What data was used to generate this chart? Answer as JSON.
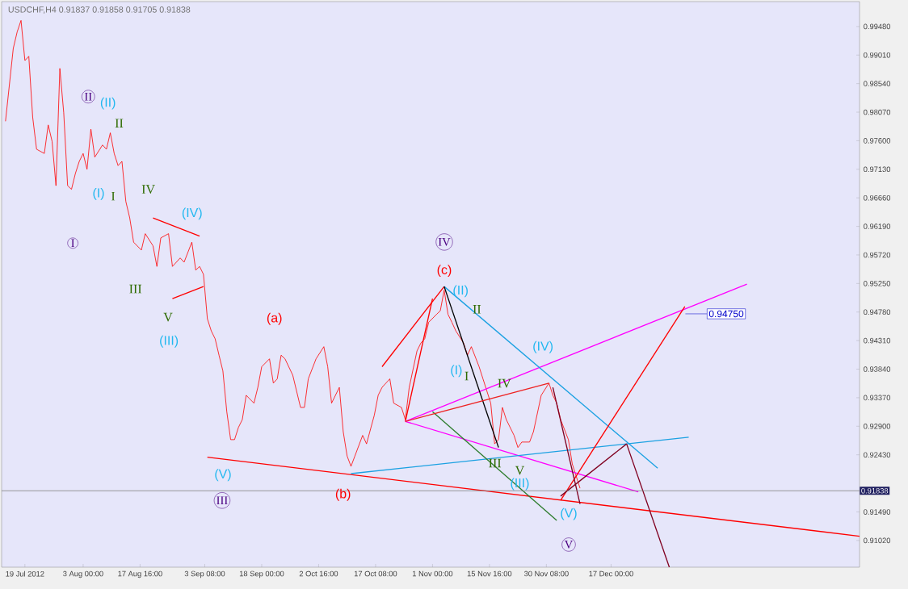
{
  "chart_data": {
    "type": "line",
    "title": "USDCHF,H4  0.91837 0.91858 0.91705 0.91838",
    "xlim": [
      "2012-07-13",
      "2013-02-19"
    ],
    "ylim": [
      0.9058,
      0.9989
    ],
    "xticks": [
      {
        "value": "2012-07-19",
        "label": "19 Jul 2012"
      },
      {
        "value": "2012-08-03T00:00",
        "label": "3 Aug 00:00"
      },
      {
        "value": "2012-08-17T16:00",
        "label": "17 Aug 16:00"
      },
      {
        "value": "2012-09-03T08:00",
        "label": "3 Sep 08:00"
      },
      {
        "value": "2012-09-18T00:00",
        "label": "18 Sep 00:00"
      },
      {
        "value": "2012-10-02T16:00",
        "label": "2 Oct 16:00"
      },
      {
        "value": "2012-10-17T08:00",
        "label": "17 Oct 08:00"
      },
      {
        "value": "2012-11-01T00:00",
        "label": "1 Nov 00:00"
      },
      {
        "value": "2012-11-15T16:00",
        "label": "15 Nov 16:00"
      },
      {
        "value": "2012-11-30T08:00",
        "label": "30 Nov 08:00"
      },
      {
        "value": "2012-12-17T00:00",
        "label": "17 Dec 00:00"
      }
    ],
    "yticks": [
      {
        "value": 0.9102,
        "label": "0.91020"
      },
      {
        "value": 0.9149,
        "label": "0.91490"
      },
      {
        "value": 0.9243,
        "label": "0.92430"
      },
      {
        "value": 0.929,
        "label": "0.92900"
      },
      {
        "value": 0.9337,
        "label": "0.93370"
      },
      {
        "value": 0.9384,
        "label": "0.93840"
      },
      {
        "value": 0.9431,
        "label": "0.94310"
      },
      {
        "value": 0.9478,
        "label": "0.94780"
      },
      {
        "value": 0.9525,
        "label": "0.95250"
      },
      {
        "value": 0.9572,
        "label": "0.95720"
      },
      {
        "value": 0.9619,
        "label": "0.96190"
      },
      {
        "value": 0.9666,
        "label": "0.96660"
      },
      {
        "value": 0.9713,
        "label": "0.97130"
      },
      {
        "value": 0.976,
        "label": "0.97600"
      },
      {
        "value": 0.9807,
        "label": "0.98070"
      },
      {
        "value": 0.9854,
        "label": "0.98540"
      },
      {
        "value": 0.9901,
        "label": "0.99010"
      },
      {
        "value": 0.9948,
        "label": "0.99480"
      }
    ],
    "series": [
      {
        "color": "#ff0000",
        "x": [
          "2012-07-14",
          "2012-07-16",
          "2012-07-17",
          "2012-07-18",
          "2012-07-19",
          "2012-07-20",
          "2012-07-21",
          "2012-07-22",
          "2012-07-24",
          "2012-07-25",
          "2012-07-26",
          "2012-07-27",
          "2012-07-28",
          "2012-07-29",
          "2012-07-30",
          "2012-07-31",
          "2012-08-01",
          "2012-08-02",
          "2012-08-03",
          "2012-08-04",
          "2012-08-05",
          "2012-08-06",
          "2012-08-08",
          "2012-08-09",
          "2012-08-10",
          "2012-08-11",
          "2012-08-12",
          "2012-08-13",
          "2012-08-14",
          "2012-08-15",
          "2012-08-16",
          "2012-08-18",
          "2012-08-19",
          "2012-08-21",
          "2012-08-22",
          "2012-08-23",
          "2012-08-25",
          "2012-08-26",
          "2012-08-28",
          "2012-08-29",
          "2012-08-31",
          "2012-09-01",
          "2012-09-02",
          "2012-09-03",
          "2012-09-04",
          "2012-09-05",
          "2012-09-06",
          "2012-09-07",
          "2012-09-08",
          "2012-09-09",
          "2012-09-10",
          "2012-09-11",
          "2012-09-12",
          "2012-09-13",
          "2012-09-14",
          "2012-09-16",
          "2012-09-17",
          "2012-09-18",
          "2012-09-20",
          "2012-09-21",
          "2012-09-22",
          "2012-09-23",
          "2012-09-24",
          "2012-09-26",
          "2012-09-28",
          "2012-09-29",
          "2012-09-30",
          "2012-10-02",
          "2012-10-04",
          "2012-10-05",
          "2012-10-06",
          "2012-10-08",
          "2012-10-09",
          "2012-10-10",
          "2012-10-11",
          "2012-10-12",
          "2012-10-14",
          "2012-10-15",
          "2012-10-17",
          "2012-10-18",
          "2012-10-19",
          "2012-10-21",
          "2012-10-22",
          "2012-10-24",
          "2012-10-25",
          "2012-10-26",
          "2012-10-28",
          "2012-10-29",
          "2012-10-30",
          "2012-10-31",
          "2012-11-02",
          "2012-11-03",
          "2012-11-04",
          "2012-11-05",
          "2012-11-06",
          "2012-11-07",
          "2012-11-09",
          "2012-11-10",
          "2012-11-11",
          "2012-11-13",
          "2012-11-14",
          "2012-11-16",
          "2012-11-17",
          "2012-11-18",
          "2012-11-19",
          "2012-11-20",
          "2012-11-22",
          "2012-11-23",
          "2012-11-24",
          "2012-11-26",
          "2012-11-27",
          "2012-11-29",
          "2012-12-01",
          "2012-12-02",
          "2012-12-03",
          "2012-12-04",
          "2012-12-06",
          "2012-12-07",
          "2012-12-08",
          "2012-12-09"
        ],
        "values": [
          0.9792,
          0.9912,
          0.9939,
          0.9958,
          0.9892,
          0.9899,
          0.9799,
          0.9746,
          0.9739,
          0.9786,
          0.9759,
          0.9686,
          0.9879,
          0.9806,
          0.9686,
          0.968,
          0.9706,
          0.9726,
          0.9739,
          0.9713,
          0.9779,
          0.9733,
          0.9753,
          0.9746,
          0.9773,
          0.9739,
          0.9719,
          0.9726,
          0.966,
          0.9633,
          0.9593,
          0.958,
          0.9607,
          0.9587,
          0.9553,
          0.96,
          0.9607,
          0.9553,
          0.9567,
          0.956,
          0.9593,
          0.9547,
          0.9553,
          0.954,
          0.9467,
          0.9447,
          0.9434,
          0.9407,
          0.9381,
          0.9314,
          0.9268,
          0.9268,
          0.9288,
          0.9301,
          0.9341,
          0.9328,
          0.9354,
          0.9388,
          0.9401,
          0.9361,
          0.9368,
          0.9407,
          0.9401,
          0.9374,
          0.9321,
          0.9321,
          0.9368,
          0.9401,
          0.9421,
          0.9388,
          0.9328,
          0.9354,
          0.9281,
          0.9241,
          0.9224,
          0.9241,
          0.9275,
          0.9261,
          0.9308,
          0.9341,
          0.9354,
          0.9368,
          0.9328,
          0.9321,
          0.9301,
          0.9354,
          0.9414,
          0.9427,
          0.9434,
          0.9461,
          0.9474,
          0.948,
          0.9514,
          0.9474,
          0.9461,
          0.9447,
          0.9427,
          0.9407,
          0.9421,
          0.9388,
          0.9368,
          0.9328,
          0.9261,
          0.9268,
          0.9321,
          0.9301,
          0.9275,
          0.9255,
          0.9264,
          0.9264,
          0.9281,
          0.9341,
          0.9361,
          0.9341,
          0.9328,
          0.9301,
          0.9268,
          0.9228,
          0.9208,
          0.9188
        ]
      },
      {
        "color": "#ff0000",
        "x": [
          "2012-09-04",
          "2013-02-19"
        ],
        "values": [
          0.9239,
          0.9109
        ]
      },
      {
        "color": "#ff0000",
        "x": [
          "2012-08-21",
          "2012-09-02"
        ],
        "values": [
          0.9633,
          0.9603
        ]
      },
      {
        "color": "#ff0000",
        "x": [
          "2012-08-26",
          "2012-09-03"
        ],
        "values": [
          0.95,
          0.952
        ]
      },
      {
        "color": "#ff0000",
        "x": [
          "2012-10-19",
          "2012-11-04"
        ],
        "values": [
          0.9388,
          0.952
        ]
      },
      {
        "color": "#ff0000",
        "x": [
          "2012-10-25",
          "2012-11-01"
        ],
        "values": [
          0.9298,
          0.95
        ]
      },
      {
        "color": "#ff00ff",
        "x": [
          "2012-10-25",
          "2013-01-21"
        ],
        "values": [
          0.9298,
          0.9524
        ]
      },
      {
        "color": "#ff00ff",
        "x": [
          "2012-10-25",
          "2012-12-24"
        ],
        "values": [
          0.9298,
          0.9182
        ]
      },
      {
        "color": "#1ba1e2",
        "x": [
          "2012-11-04",
          "2012-12-29"
        ],
        "values": [
          0.952,
          0.9221
        ]
      },
      {
        "color": "#1ba1e2",
        "x": [
          "2012-10-11",
          "2013-01-06"
        ],
        "values": [
          0.9212,
          0.9272
        ]
      },
      {
        "color": "#2e7d2e",
        "x": [
          "2012-11-01",
          "2012-12-03"
        ],
        "values": [
          0.9314,
          0.9135
        ]
      },
      {
        "color": "#ff0000",
        "x": [
          "2012-12-04",
          "2013-01-05"
        ],
        "values": [
          0.9168,
          0.9487
        ]
      },
      {
        "color": "#000000",
        "x": [
          "2012-11-04",
          "2012-11-18"
        ],
        "values": [
          0.952,
          0.9255
        ]
      },
      {
        "color": "#ee2222",
        "x": [
          "2012-10-25",
          "2012-12-01"
        ],
        "values": [
          0.9298,
          0.9361
        ]
      },
      {
        "color": "#800020",
        "x": [
          "2012-12-02",
          "2012-12-09"
        ],
        "values": [
          0.9354,
          0.9162
        ]
      },
      {
        "color": "#800020",
        "x": [
          "2012-12-04",
          "2012-12-21"
        ],
        "values": [
          0.9175,
          0.9261
        ]
      },
      {
        "color": "#800020",
        "x": [
          "2012-12-21",
          "2013-01-01"
        ],
        "values": [
          0.9261,
          0.9058
        ]
      }
    ],
    "ref_lines": [
      {
        "axis": "y",
        "value": 0.91838,
        "label": "0.91838",
        "color": "#808080"
      }
    ],
    "annotations": [
      "I",
      "II",
      "III",
      "IV",
      "V",
      "(II)",
      "(I)",
      "(IV)",
      "(III)",
      "(V)",
      "(II)",
      "(I)",
      "(IV)",
      "(III)",
      "(V)",
      "II",
      "I",
      "IV",
      "III",
      "V",
      "II",
      "I",
      "IV",
      "III",
      "V",
      "(a)",
      "(b)",
      "(c)",
      "0.94750"
    ]
  }
}
